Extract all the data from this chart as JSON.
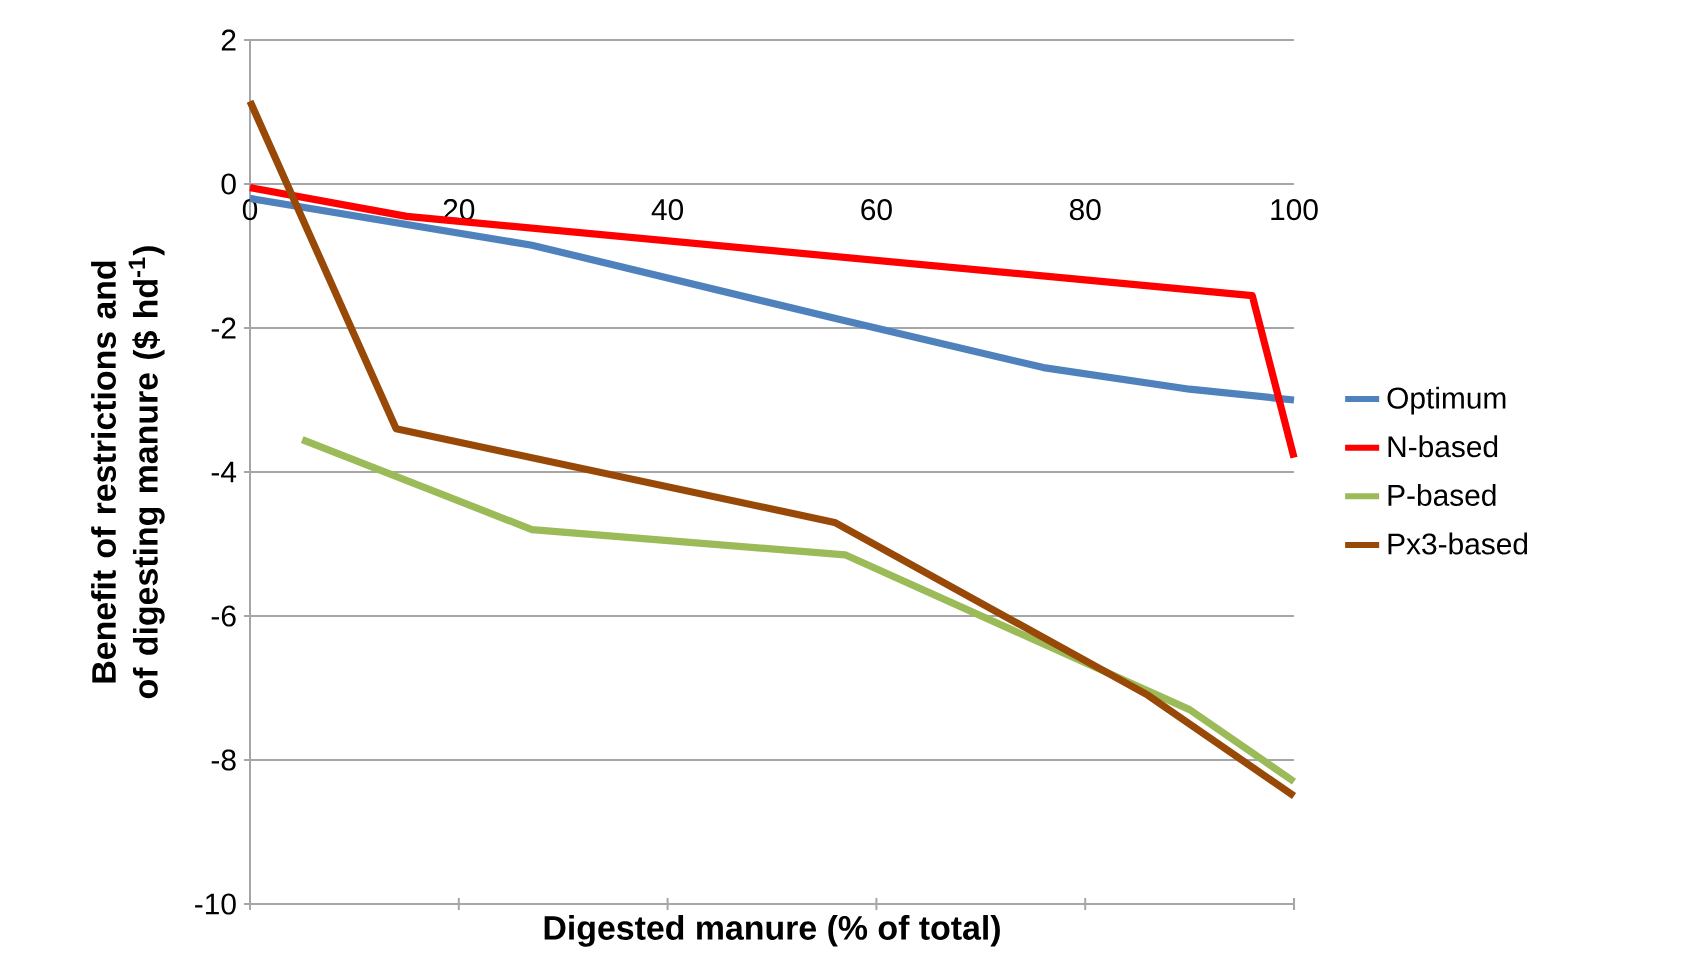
{
  "chart_data": {
    "type": "line",
    "xlabel": "Digested manure (% of total)",
    "ylabel": "Benefit of restrictions and of digesting manure ($ hd$^{-1}$)",
    "xlim": [
      0,
      100
    ],
    "ylim": [
      -10,
      2
    ],
    "xticks": [
      0,
      20,
      40,
      60,
      80,
      100
    ],
    "yticks": [
      -10,
      -8,
      -6,
      -4,
      -2,
      0,
      2
    ],
    "grid": "y",
    "legend": "right",
    "series": [
      {
        "name": "Optimum",
        "color": "#4f81bd",
        "x": [
          0,
          27,
          57,
          76,
          90,
          100
        ],
        "values": [
          -0.2,
          -0.85,
          -1.9,
          -2.55,
          -2.85,
          -3.0
        ]
      },
      {
        "name": "N-based",
        "color": "#ff0000",
        "x": [
          0,
          15,
          96,
          100
        ],
        "values": [
          -0.05,
          -0.45,
          -1.55,
          -3.8
        ]
      },
      {
        "name": "P-based",
        "color": "#9bbb59",
        "x": [
          5,
          27,
          57,
          90,
          100
        ],
        "values": [
          -3.55,
          -4.8,
          -5.15,
          -7.3,
          -8.3
        ]
      },
      {
        "name": "Px3-based",
        "color": "#984807",
        "x": [
          0,
          14,
          56,
          86,
          100
        ],
        "values": [
          1.15,
          -3.4,
          -4.7,
          -7.1,
          -8.5
        ]
      }
    ]
  }
}
